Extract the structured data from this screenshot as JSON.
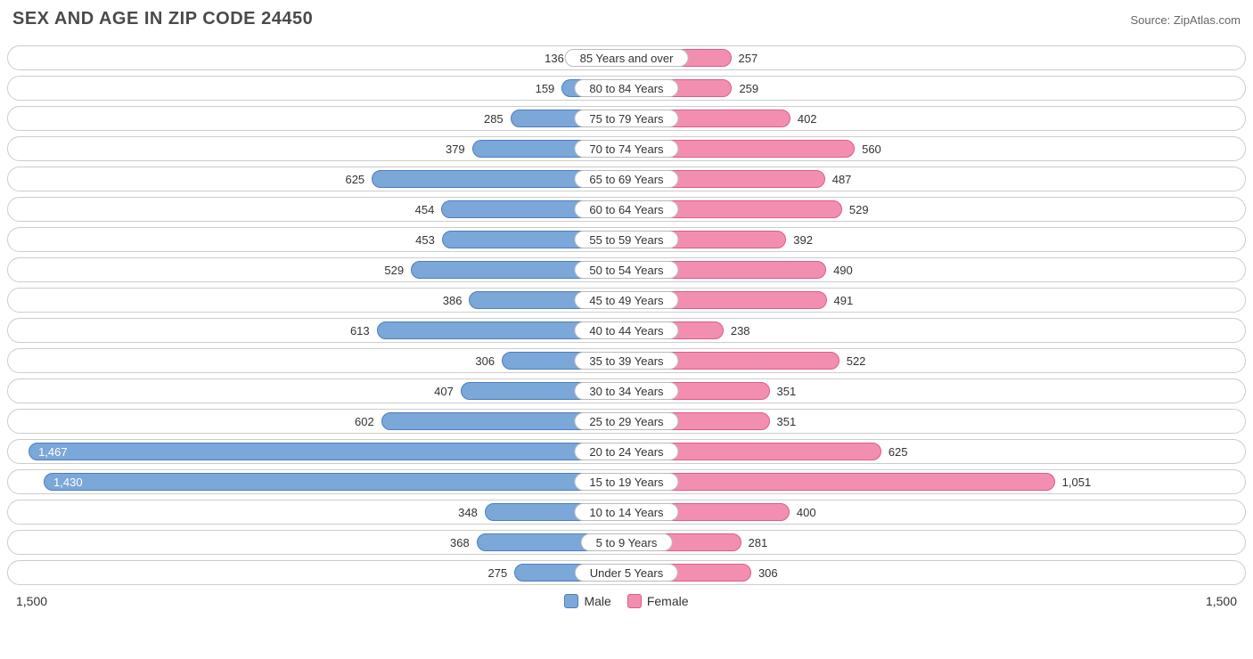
{
  "title": "SEX AND AGE IN ZIP CODE 24450",
  "source": "Source: ZipAtlas.com",
  "chart": {
    "type": "population-pyramid",
    "axis_max": 1500,
    "axis_label_left": "1,500",
    "axis_label_right": "1,500",
    "male_color": "#7ba7d9",
    "male_border": "#4a7fc0",
    "female_color": "#f28fb0",
    "female_border": "#e05a88",
    "row_border_color": "#cccccc",
    "row_bg": "#ffffff",
    "background_color": "#ffffff",
    "text_color": "#333333",
    "title_color": "#4a4a4a",
    "value_inside_color": "#ffffff",
    "value_threshold_for_inside": 1100,
    "label_fontsize": 13,
    "title_fontsize": 20,
    "legend": {
      "male_label": "Male",
      "female_label": "Female"
    },
    "rows": [
      {
        "label": "85 Years and over",
        "male": 136,
        "male_fmt": "136",
        "female": 257,
        "female_fmt": "257"
      },
      {
        "label": "80 to 84 Years",
        "male": 159,
        "male_fmt": "159",
        "female": 259,
        "female_fmt": "259"
      },
      {
        "label": "75 to 79 Years",
        "male": 285,
        "male_fmt": "285",
        "female": 402,
        "female_fmt": "402"
      },
      {
        "label": "70 to 74 Years",
        "male": 379,
        "male_fmt": "379",
        "female": 560,
        "female_fmt": "560"
      },
      {
        "label": "65 to 69 Years",
        "male": 625,
        "male_fmt": "625",
        "female": 487,
        "female_fmt": "487"
      },
      {
        "label": "60 to 64 Years",
        "male": 454,
        "male_fmt": "454",
        "female": 529,
        "female_fmt": "529"
      },
      {
        "label": "55 to 59 Years",
        "male": 453,
        "male_fmt": "453",
        "female": 392,
        "female_fmt": "392"
      },
      {
        "label": "50 to 54 Years",
        "male": 529,
        "male_fmt": "529",
        "female": 490,
        "female_fmt": "490"
      },
      {
        "label": "45 to 49 Years",
        "male": 386,
        "male_fmt": "386",
        "female": 491,
        "female_fmt": "491"
      },
      {
        "label": "40 to 44 Years",
        "male": 613,
        "male_fmt": "613",
        "female": 238,
        "female_fmt": "238"
      },
      {
        "label": "35 to 39 Years",
        "male": 306,
        "male_fmt": "306",
        "female": 522,
        "female_fmt": "522"
      },
      {
        "label": "30 to 34 Years",
        "male": 407,
        "male_fmt": "407",
        "female": 351,
        "female_fmt": "351"
      },
      {
        "label": "25 to 29 Years",
        "male": 602,
        "male_fmt": "602",
        "female": 351,
        "female_fmt": "351"
      },
      {
        "label": "20 to 24 Years",
        "male": 1467,
        "male_fmt": "1,467",
        "female": 625,
        "female_fmt": "625"
      },
      {
        "label": "15 to 19 Years",
        "male": 1430,
        "male_fmt": "1,430",
        "female": 1051,
        "female_fmt": "1,051"
      },
      {
        "label": "10 to 14 Years",
        "male": 348,
        "male_fmt": "348",
        "female": 400,
        "female_fmt": "400"
      },
      {
        "label": "5 to 9 Years",
        "male": 368,
        "male_fmt": "368",
        "female": 281,
        "female_fmt": "281"
      },
      {
        "label": "Under 5 Years",
        "male": 275,
        "male_fmt": "275",
        "female": 306,
        "female_fmt": "306"
      }
    ]
  }
}
